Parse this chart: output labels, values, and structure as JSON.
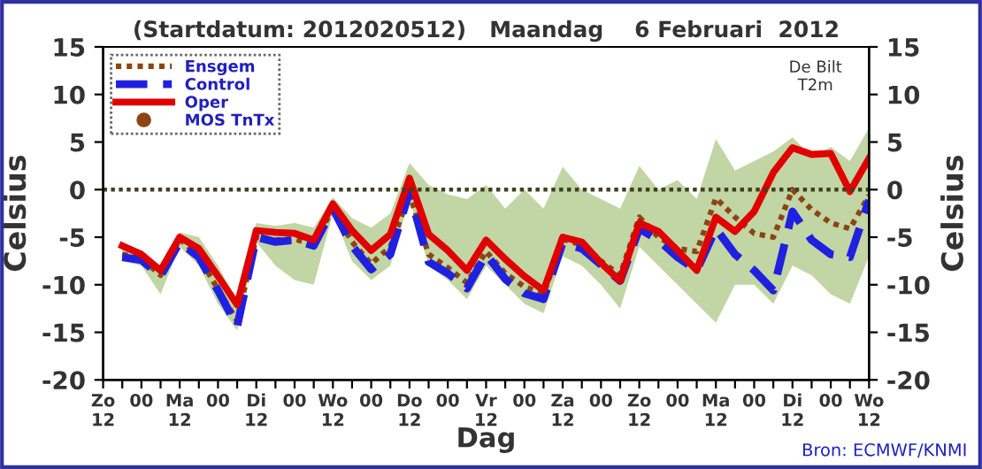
{
  "chart_data": {
    "type": "line",
    "title": "(Startdatum: 2012020512)   Maandag    6 Februari  2012",
    "xlabel": "Dag",
    "ylabel": "Celsius",
    "y2label": "Celsius",
    "annotations": [
      "De Bilt\nT2m",
      "Bron: ECMWF/KNMI"
    ],
    "categories": [
      "Zo\n12",
      null,
      "00",
      null,
      "Ma\n12",
      null,
      "00",
      null,
      "Di\n12",
      null,
      "00",
      null,
      "Wo\n12",
      null,
      "00",
      null,
      "Do\n12",
      null,
      "00",
      null,
      "Vr\n12",
      null,
      "00",
      null,
      "Za\n12",
      null,
      "00",
      null,
      "Zo\n12",
      null,
      "00",
      null,
      "Ma\n12",
      null,
      "00",
      null,
      "Di\n12",
      null,
      "00",
      null,
      "Wo\n12"
    ],
    "series": [
      {
        "color": "#8fb35a",
        "values": [
          null,
          null,
          null,
          null,
          null,
          null,
          null,
          null,
          null,
          null,
          null,
          null,
          null,
          null,
          null,
          null,
          null,
          null,
          null,
          null,
          null,
          null,
          null,
          null,
          null,
          null,
          null,
          null,
          null,
          null,
          null,
          null,
          null,
          null,
          null,
          null,
          null,
          null,
          null,
          null,
          null
        ],
        "lower": [
          null,
          -7.5,
          -8,
          -11,
          -6,
          -8,
          -12,
          -14.8,
          -5.5,
          -8,
          -9.5,
          -10,
          -2.5,
          -7.5,
          -9.5,
          -8,
          -1,
          -8,
          -9.5,
          -11.5,
          -8,
          -10,
          -12,
          -13,
          -7,
          -8,
          -10,
          -12.5,
          -6,
          -8,
          -10,
          -12,
          -14,
          -10,
          -10,
          -12,
          -8,
          -9,
          -11,
          -12,
          -7
        ],
        "upper": [
          null,
          -6.2,
          -6.5,
          -8,
          -4.5,
          -5,
          -8,
          -11.8,
          -3.5,
          -3.8,
          -3.5,
          -4,
          -0.8,
          -3,
          -4,
          -2.5,
          2.8,
          0.5,
          -0.5,
          -1,
          0.5,
          -2,
          0,
          -2,
          2.4,
          0,
          -1,
          -2,
          2.5,
          0,
          1,
          -1,
          5.3,
          2,
          3,
          4,
          5.5,
          3.5,
          4.5,
          3,
          6.5
        ]
      },
      {
        "name": "Ensgem",
        "color": "#8b4513",
        "line_style": "dotted",
        "values": [
          null,
          -6.8,
          -7.2,
          -9.0,
          -5.2,
          -7.0,
          -10.5,
          -13.8,
          -5.0,
          -5.3,
          -5.2,
          -5.8,
          -2.0,
          -5.5,
          -7.8,
          -6.0,
          -0.5,
          -6.8,
          -8.2,
          -9.8,
          -6.5,
          -8.8,
          -10.2,
          -11.0,
          -5.2,
          -5.8,
          -7.5,
          -9.0,
          -2.9,
          -5.0,
          -6.2,
          -6.5,
          -0.9,
          -2.9,
          -4.6,
          -5.0,
          0,
          -2.1,
          -3.5,
          -4.1,
          -0.6
        ]
      },
      {
        "name": "Control",
        "color": "#2020e0",
        "line_style": "dashed",
        "values": [
          null,
          -7.1,
          -7.4,
          -9.1,
          -5.5,
          -7.1,
          -10.6,
          -14.4,
          -5.0,
          -5.5,
          -5.3,
          -5.9,
          -2.0,
          -5.9,
          -8.4,
          -6.8,
          -0.2,
          -7.6,
          -8.8,
          -10.4,
          -6.8,
          -9.4,
          -10.9,
          -11.5,
          -5.6,
          -6.2,
          -7.9,
          -9.6,
          -4.1,
          -5.3,
          -7.1,
          -8.5,
          -4.1,
          -6.8,
          -8.5,
          -10.6,
          -2.3,
          -5.3,
          -6.8,
          -7.1,
          -1.1
        ]
      },
      {
        "name": "Oper",
        "color": "#e00000",
        "line_style": "solid",
        "values": [
          null,
          -5.9,
          -6.8,
          -8.5,
          -5.0,
          -6.2,
          -9.1,
          -12.1,
          -4.3,
          -4.5,
          -4.6,
          -5.3,
          -1.5,
          -4.3,
          -6.4,
          -4.7,
          1.2,
          -4.7,
          -6.4,
          -8.5,
          -5.3,
          -7.3,
          -9.1,
          -10.6,
          -5.0,
          -5.5,
          -7.7,
          -9.6,
          -3.5,
          -4.4,
          -6.4,
          -8.5,
          -2.9,
          -4.4,
          -2.3,
          1.8,
          4.4,
          3.7,
          3.8,
          -0.2,
          3.3
        ]
      },
      {
        "name": "MOS TnTx",
        "type": "scatter",
        "marker": "circle",
        "color": "#8b4513",
        "values": [
          null,
          null,
          null,
          null,
          null,
          null,
          null,
          null,
          null,
          null,
          null,
          null,
          null,
          null,
          null,
          null,
          null,
          null,
          null,
          null,
          null,
          null,
          null,
          null,
          null,
          null,
          null,
          null,
          null,
          null,
          null,
          null,
          null,
          null,
          null,
          null,
          null,
          null,
          null,
          null,
          null
        ]
      }
    ],
    "ylim": [
      -20,
      15
    ],
    "yticks": [
      -20,
      -15,
      -10,
      -5,
      0,
      5,
      10,
      15
    ],
    "y2lim": [
      -20,
      15
    ],
    "y2ticks": [
      -20,
      -15,
      -10,
      -5,
      0,
      5,
      10,
      15
    ],
    "ref_lines": [
      {
        "axis": "y",
        "value": 0,
        "color": "#404020",
        "line_style": "dotted"
      }
    ],
    "legend": "top left",
    "grid": false
  }
}
